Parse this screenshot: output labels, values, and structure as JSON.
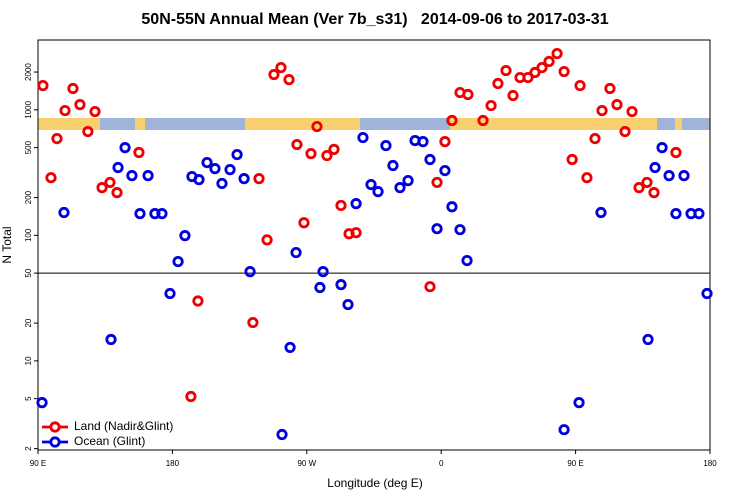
{
  "chart_data": {
    "type": "scatter",
    "title": "50N-55N Annual Mean (Ver 7b_s31)   2014-09-06 to 2017-03-31",
    "xlabel": "Longitude (deg E)",
    "ylabel": "N Total",
    "xlim": [
      90,
      540
    ],
    "xticks": [
      {
        "value": 90,
        "label": "90 E"
      },
      {
        "value": 180,
        "label": "180"
      },
      {
        "value": 270,
        "label": "90 W"
      },
      {
        "value": 360,
        "label": "0"
      },
      {
        "value": 450,
        "label": "90 E"
      },
      {
        "value": 540,
        "label": "180"
      }
    ],
    "ylim": [
      1.95,
      3600
    ],
    "log_y": true,
    "yticks": [
      2,
      5,
      10,
      20,
      50,
      100,
      200,
      500,
      1000,
      2000
    ],
    "reference_line": 50,
    "legend": "lower left",
    "series": [
      {
        "name": "Land (Nadir&Glint)",
        "color": "#ee0000",
        "x": [
          93.3,
          98.7,
          102.7,
          108.1,
          113.4,
          118.1,
          123.4,
          128.2,
          132.9,
          138.2,
          142.9,
          157.6,
          192.4,
          197.1,
          233.9,
          238.0,
          243.4,
          248.0,
          252.7,
          258.1,
          263.4,
          268.1,
          272.8,
          276.8,
          283.5,
          288.2,
          292.9,
          298.3,
          303.0,
          352.5,
          357.2,
          362.5,
          367.2,
          372.6,
          377.9,
          388.0,
          393.4,
          398.0,
          403.4,
          408.1,
          412.8,
          418.1,
          422.8,
          427.5,
          432.2,
          437.6,
          442.3,
          447.7,
          453.0,
          457.6,
          463.0,
          467.7,
          473.0,
          477.7,
          483.1,
          487.8,
          492.5,
          497.8,
          502.5,
          517.2
        ],
        "values": [
          1560,
          288,
          590,
          986,
          1479,
          1100,
          671,
          969,
          240,
          264,
          219,
          457,
          5.2,
          30,
          20.2,
          283,
          92,
          1910,
          2170,
          1740,
          529,
          126,
          448,
          736,
          432,
          484,
          173,
          103,
          105,
          39,
          264,
          558,
          822,
          1373,
          1324,
          822,
          1081,
          1620,
          2055,
          1300,
          1807,
          1807,
          1982,
          2170,
          2426,
          2806,
          2018,
          402,
          1560,
          288,
          590,
          986,
          1479,
          1100,
          671,
          969,
          240,
          264,
          219,
          457
        ]
      },
      {
        "name": "Ocean (Glint)",
        "color": "#0000dd",
        "x": [
          92.7,
          107.4,
          138.9,
          143.6,
          148.3,
          152.9,
          158.3,
          163.7,
          168.3,
          173.0,
          178.4,
          183.8,
          188.4,
          193.1,
          197.8,
          203.2,
          208.5,
          213.2,
          218.6,
          223.3,
          228.0,
          232.0,
          253.4,
          258.8,
          262.8,
          278.8,
          280.9,
          292.9,
          297.6,
          303.0,
          307.6,
          313.0,
          317.7,
          323.0,
          327.7,
          332.4,
          337.8,
          342.5,
          347.8,
          352.5,
          357.2,
          362.5,
          367.2,
          372.6,
          377.3,
          442.3,
          452.3,
          467.0,
          498.5,
          503.2,
          507.9,
          512.6,
          517.2,
          522.6,
          527.3,
          532.6,
          538.0
        ],
        "values": [
          4.65,
          152,
          14.8,
          347,
          500,
          299,
          149,
          299,
          149,
          149,
          34.4,
          61.8,
          99.5,
          294,
          278,
          380,
          340,
          259,
          334,
          440,
          283,
          51.4,
          2.59,
          12.8,
          72.9,
          38.4,
          51.4,
          40.5,
          28.1,
          179,
          601,
          254,
          223,
          519,
          360,
          240,
          273,
          569,
          558,
          402,
          113,
          328,
          169,
          111,
          63,
          2.83,
          4.65,
          152,
          14.8,
          347,
          500,
          299,
          149,
          299,
          149,
          149,
          34.4
        ]
      }
    ]
  }
}
